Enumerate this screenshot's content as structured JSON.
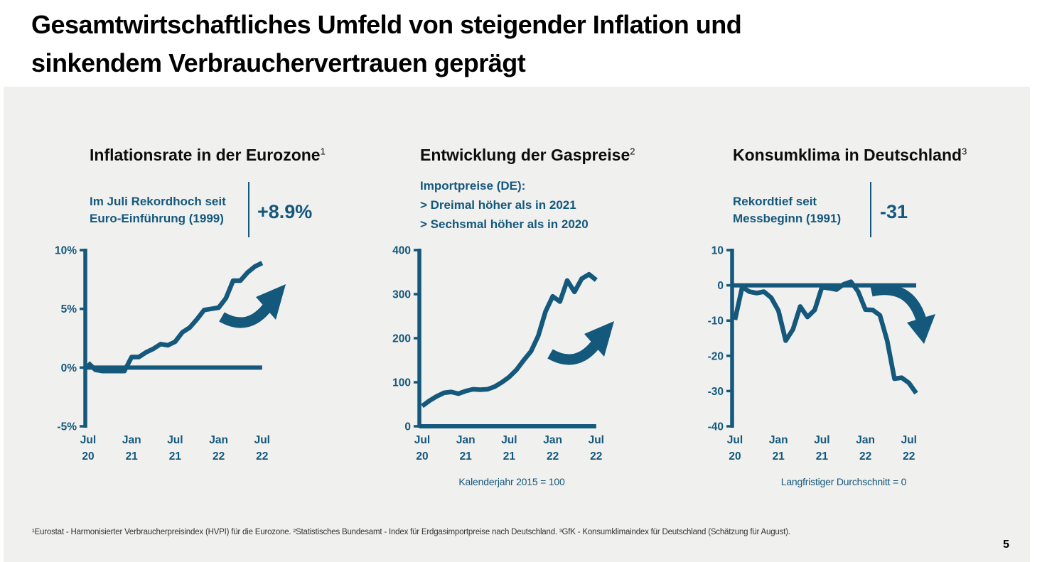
{
  "page": {
    "title_line1": "Gesamtwirtschaftliches Umfeld von steigender Inflation und",
    "title_line2": "sinkendem Verbrauchervertrauen geprägt",
    "footnote": "¹Eurostat - Harmonisierter Verbraucherpreisindex (HVPI) für die Eurozone. ²Statistisches Bundesamt - Index für Erdgasimportpreise nach Deutschland.   ³GfK - Konsumklimaindex für Deutschland (Schätzung für August).",
    "page_number": "5"
  },
  "colors": {
    "accent": "#14587c",
    "panel_background": "#f0f0ee",
    "title_text": "#000000"
  },
  "chart_data": [
    {
      "type": "line",
      "title": "Inflationsrate in der Eurozone",
      "title_superscript": "1",
      "subtitle_lines": [
        "Im Juli Rekordhoch seit",
        "Euro-Einführung (1999)"
      ],
      "highlight_value": "+8.9%",
      "trend_icon": "up-arrow",
      "caption": "",
      "x_unit": "month",
      "x_start": "Jul 20",
      "values": [
        0.4,
        -0.2,
        -0.3,
        -0.3,
        -0.3,
        -0.3,
        0.9,
        0.9,
        1.3,
        1.6,
        2.0,
        1.9,
        2.2,
        3.0,
        3.4,
        4.1,
        4.9,
        5.0,
        5.1,
        5.9,
        7.4,
        7.4,
        8.1,
        8.6,
        8.9
      ],
      "ylim": [
        -5,
        10
      ],
      "yticks": [
        {
          "value": 10,
          "label": "10%"
        },
        {
          "value": 5,
          "label": "5%"
        },
        {
          "value": 0,
          "label": "0%"
        },
        {
          "value": -5,
          "label": "-5%"
        }
      ],
      "xticks": [
        {
          "pos": 0,
          "line1": "Jul",
          "line2": "20"
        },
        {
          "pos": 6,
          "line1": "Jan",
          "line2": "21"
        },
        {
          "pos": 12,
          "line1": "Jul",
          "line2": "21"
        },
        {
          "pos": 18,
          "line1": "Jan",
          "line2": "22"
        },
        {
          "pos": 24,
          "line1": "Jul",
          "line2": "22"
        }
      ],
      "zero_line": true
    },
    {
      "type": "line",
      "title": "Entwicklung der Gaspreise",
      "title_superscript": "2",
      "subtitle_lines": [
        "Importpreise (DE):",
        "> Dreimal höher als in 2021",
        "> Sechsmal höher als in 2020"
      ],
      "highlight_value": "",
      "trend_icon": "up-arrow",
      "caption": "Kalenderjahr 2015 = 100",
      "x_unit": "month",
      "x_start": "Jul 20",
      "values": [
        46,
        58,
        68,
        76,
        78,
        74,
        80,
        84,
        83,
        84,
        90,
        100,
        112,
        128,
        150,
        170,
        205,
        260,
        295,
        283,
        331,
        305,
        335,
        345,
        332
      ],
      "ylim": [
        0,
        400
      ],
      "yticks": [
        {
          "value": 400,
          "label": "400"
        },
        {
          "value": 300,
          "label": "300"
        },
        {
          "value": 200,
          "label": "200"
        },
        {
          "value": 100,
          "label": "100"
        },
        {
          "value": 0,
          "label": "0"
        }
      ],
      "xticks": [
        {
          "pos": 0,
          "line1": "Jul",
          "line2": "20"
        },
        {
          "pos": 6,
          "line1": "Jan",
          "line2": "21"
        },
        {
          "pos": 12,
          "line1": "Jul",
          "line2": "21"
        },
        {
          "pos": 18,
          "line1": "Jan",
          "line2": "22"
        },
        {
          "pos": 24,
          "line1": "Jul",
          "line2": "22"
        }
      ],
      "zero_line": true
    },
    {
      "type": "line",
      "title": "Konsumklima in Deutschland",
      "title_superscript": "3",
      "subtitle_lines": [
        "Rekordtief seit",
        "Messbeginn (1991)"
      ],
      "highlight_value": "-31",
      "trend_icon": "down-arrow",
      "caption": "Langfristiger Durchschnitt = 0",
      "x_unit": "month",
      "x_start": "Jul 20",
      "values": [
        -9.8,
        -0.5,
        -1.8,
        -2.2,
        -1.8,
        -3.5,
        -7.2,
        -15.7,
        -12.5,
        -6.0,
        -9.0,
        -7.0,
        -0.5,
        -0.8,
        -1.2,
        0.3,
        1.0,
        -1.8,
        -6.9,
        -7.0,
        -8.5,
        -15.7,
        -26.5,
        -26.2,
        -27.7,
        -30.6
      ],
      "ylim": [
        -40,
        10
      ],
      "yticks": [
        {
          "value": 10,
          "label": "10"
        },
        {
          "value": 0,
          "label": "0"
        },
        {
          "value": -10,
          "label": "-10"
        },
        {
          "value": -20,
          "label": "-20"
        },
        {
          "value": -30,
          "label": "-30"
        },
        {
          "value": -40,
          "label": "-40"
        }
      ],
      "xticks": [
        {
          "pos": 0,
          "line1": "Jul",
          "line2": "20"
        },
        {
          "pos": 6,
          "line1": "Jan",
          "line2": "21"
        },
        {
          "pos": 12,
          "line1": "Jul",
          "line2": "21"
        },
        {
          "pos": 18,
          "line1": "Jan",
          "line2": "22"
        },
        {
          "pos": 24,
          "line1": "Jul",
          "line2": "22"
        }
      ],
      "zero_line": true
    }
  ]
}
